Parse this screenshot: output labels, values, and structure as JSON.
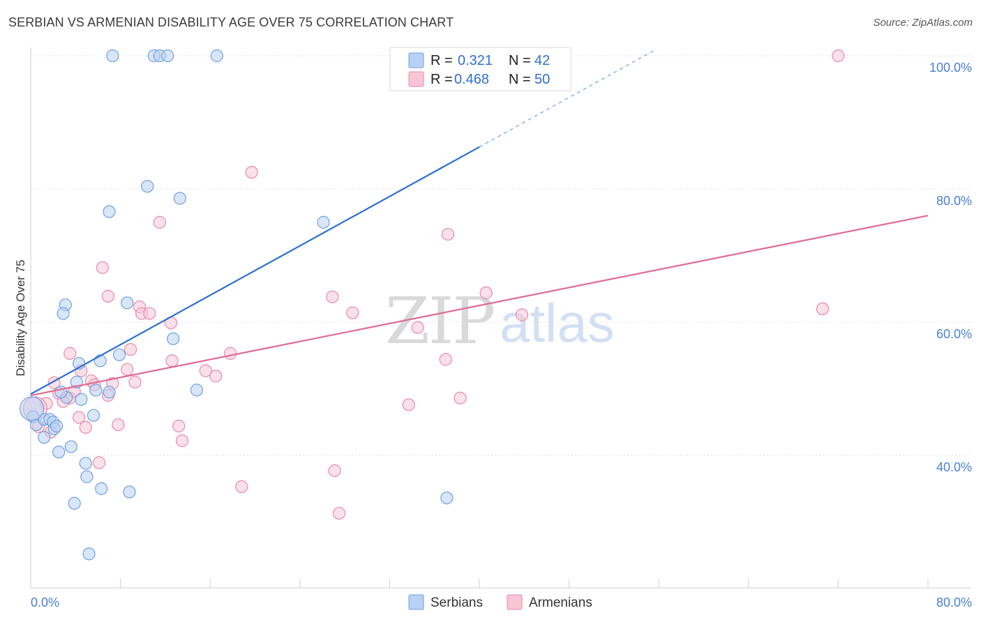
{
  "title": "SERBIAN VS ARMENIAN DISABILITY AGE OVER 75 CORRELATION CHART",
  "source": "Source: ZipAtlas.com",
  "watermark": {
    "zip": "ZIP",
    "atlas": "atlas"
  },
  "colors": {
    "serbians": "#6f9fe0",
    "serbians_fill": "#b9d1f3",
    "serbians_line": "#2a6fd0",
    "armenians": "#e98aa8",
    "armenians_fill": "#f6c6d5",
    "armenians_line": "#e06a92",
    "tick": "#4a7fd4"
  },
  "legend": {
    "r_label": "R =",
    "n_label": "N =",
    "serbians": {
      "r": "0.321",
      "n": "42"
    },
    "armenians": {
      "r": "0.468",
      "n": "50"
    }
  },
  "chart_data": {
    "type": "scatter",
    "title": "SERBIAN VS ARMENIAN DISABILITY AGE OVER 75 CORRELATION CHART",
    "xlabel": "",
    "ylabel": "Disability Age Over 75",
    "xlim": [
      0,
      80
    ],
    "ylim": [
      20,
      102
    ],
    "x_tick_labels": [
      {
        "value": 0,
        "label": "0.0%"
      },
      {
        "value": 80,
        "label": "80.0%"
      }
    ],
    "y_tick_labels": [
      {
        "value": 40,
        "label": "40.0%"
      },
      {
        "value": 60,
        "label": "60.0%"
      },
      {
        "value": 80,
        "label": "80.0%"
      },
      {
        "value": 100,
        "label": "100.0%"
      }
    ],
    "series": [
      {
        "name": "Serbians",
        "r": 0.321,
        "n": 42,
        "trend": {
          "x0": 0,
          "y0": 49.2,
          "x1": 40,
          "y1": 86.3,
          "dash_to_x": 55.8,
          "dash_to_y": 101
        },
        "points": [
          [
            7.3,
            100
          ],
          [
            11.0,
            100
          ],
          [
            11.5,
            100
          ],
          [
            12.2,
            100
          ],
          [
            16.6,
            100
          ],
          [
            10.4,
            80.4
          ],
          [
            13.3,
            78.6
          ],
          [
            7.0,
            76.6
          ],
          [
            26.1,
            75.0
          ],
          [
            3.1,
            62.6
          ],
          [
            2.9,
            61.3
          ],
          [
            8.6,
            62.9
          ],
          [
            12.7,
            57.5
          ],
          [
            4.3,
            53.8
          ],
          [
            6.2,
            54.2
          ],
          [
            7.9,
            55.1
          ],
          [
            4.1,
            51.0
          ],
          [
            5.8,
            49.8
          ],
          [
            3.2,
            48.7
          ],
          [
            7.0,
            49.5
          ],
          [
            2.7,
            49.5
          ],
          [
            4.5,
            48.4
          ],
          [
            14.8,
            49.8
          ],
          [
            0.2,
            45.8
          ],
          [
            0.5,
            44.6
          ],
          [
            1.2,
            45.4
          ],
          [
            1.7,
            45.4
          ],
          [
            2.0,
            45.0
          ],
          [
            2.1,
            44.0
          ],
          [
            2.3,
            44.4
          ],
          [
            5.6,
            46.0
          ],
          [
            1.2,
            42.7
          ],
          [
            3.6,
            41.3
          ],
          [
            2.5,
            40.5
          ],
          [
            4.9,
            38.8
          ],
          [
            5.0,
            36.8
          ],
          [
            6.3,
            35.0
          ],
          [
            8.8,
            34.5
          ],
          [
            3.9,
            32.8
          ],
          [
            37.1,
            33.6
          ],
          [
            5.2,
            25.2
          ],
          [
            0.1,
            47.0
          ]
        ]
      },
      {
        "name": "Armenians",
        "r": 0.468,
        "n": 50,
        "trend": {
          "x0": 0,
          "y0": 49.0,
          "x1": 80,
          "y1": 76.0
        },
        "points": [
          [
            72.0,
            100
          ],
          [
            19.7,
            82.5
          ],
          [
            11.5,
            75.0
          ],
          [
            37.2,
            73.2
          ],
          [
            6.4,
            68.2
          ],
          [
            6.9,
            63.9
          ],
          [
            26.9,
            63.8
          ],
          [
            40.6,
            64.4
          ],
          [
            9.7,
            62.3
          ],
          [
            9.9,
            61.3
          ],
          [
            10.6,
            61.3
          ],
          [
            28.7,
            61.4
          ],
          [
            43.8,
            61.1
          ],
          [
            70.6,
            62.0
          ],
          [
            12.5,
            59.9
          ],
          [
            34.5,
            59.2
          ],
          [
            3.5,
            55.3
          ],
          [
            8.9,
            55.9
          ],
          [
            17.8,
            55.3
          ],
          [
            12.6,
            54.2
          ],
          [
            37.0,
            54.4
          ],
          [
            4.5,
            52.7
          ],
          [
            8.6,
            52.9
          ],
          [
            15.6,
            52.7
          ],
          [
            16.5,
            51.9
          ],
          [
            2.1,
            50.9
          ],
          [
            5.4,
            51.2
          ],
          [
            5.7,
            50.6
          ],
          [
            7.3,
            50.8
          ],
          [
            2.5,
            49.3
          ],
          [
            3.5,
            48.6
          ],
          [
            6.9,
            49.0
          ],
          [
            1.4,
            47.8
          ],
          [
            2.9,
            48.1
          ],
          [
            33.7,
            47.6
          ],
          [
            38.3,
            48.6
          ],
          [
            0.4,
            47.0
          ],
          [
            4.3,
            45.7
          ],
          [
            0.7,
            44.3
          ],
          [
            4.9,
            44.2
          ],
          [
            7.8,
            44.6
          ],
          [
            13.2,
            44.4
          ],
          [
            1.8,
            43.5
          ],
          [
            13.5,
            42.2
          ],
          [
            6.1,
            38.9
          ],
          [
            27.1,
            37.7
          ],
          [
            18.8,
            35.3
          ],
          [
            27.5,
            31.3
          ],
          [
            3.9,
            49.6
          ],
          [
            9.3,
            51.0
          ]
        ]
      }
    ],
    "legend_labels": [
      "Serbians",
      "Armenians"
    ]
  }
}
